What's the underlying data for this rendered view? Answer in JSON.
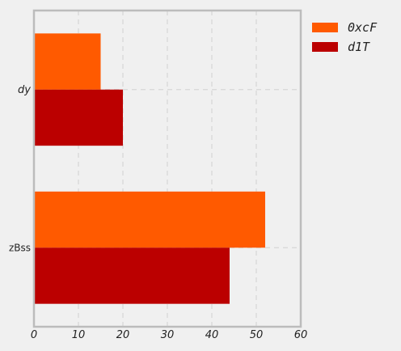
{
  "chart_data": {
    "type": "bar",
    "orientation": "horizontal",
    "categories": [
      "dy",
      "zBss"
    ],
    "series": [
      {
        "name": "0xcF",
        "values": [
          15,
          52
        ],
        "color": "#ff5a00"
      },
      {
        "name": "d1T",
        "values": [
          20,
          44
        ],
        "color": "#bb0000"
      }
    ],
    "xlim": [
      0,
      60
    ],
    "xticks": [
      0,
      10,
      20,
      30,
      40,
      50,
      60
    ],
    "grid": true,
    "legend_position": "outside-top-right",
    "title": "",
    "xlabel": "",
    "ylabel": ""
  }
}
